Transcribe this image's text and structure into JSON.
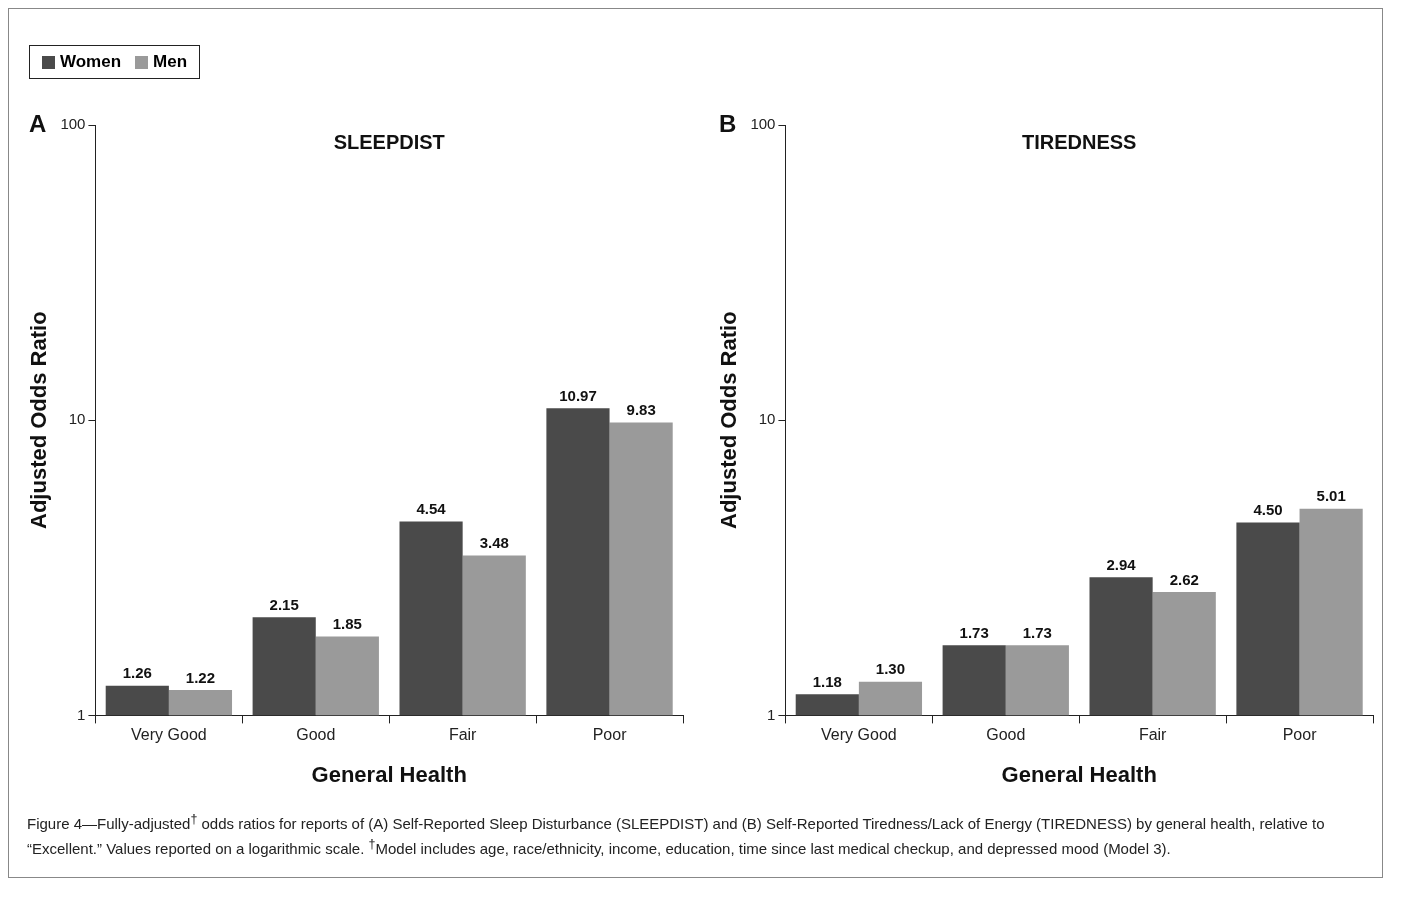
{
  "chart_data": [
    {
      "type": "bar",
      "title": "SLEEPDIST",
      "xlabel": "General Health",
      "ylabel": "Adjusted Odds Ratio",
      "categories": [
        "Very Good",
        "Good",
        "Fair",
        "Poor"
      ],
      "series": [
        {
          "name": "Women",
          "color": "#4a4a4a",
          "values": [
            1.26,
            2.15,
            4.54,
            10.97
          ]
        },
        {
          "name": "Men",
          "color": "#9a9a9a",
          "values": [
            1.22,
            1.85,
            3.48,
            9.83
          ]
        }
      ],
      "log": "y",
      "ylim": [
        1,
        100
      ],
      "yticks": [
        1,
        10,
        100
      ],
      "grid": false,
      "data_labels": true,
      "legend": "top left",
      "annotations": [
        "A",
        "Figure 4—Fully-adjusted$^{†}$ odds ratios for reports of (A) Self-Reported Sleep Disturbance (SLEEPDIST) and (B) Self-Reported Tiredness/Lack of Energy (TIREDNESS) by general health, relative to “Excellent.” Values reported on a logarithmic scale. $^{†}$Model includes age, race/ethnicity, income, education, time since last medical checkup, and depressed mood (Model 3)."
      ]
    },
    {
      "type": "bar",
      "title": "TIREDNESS",
      "xlabel": "General Health",
      "ylabel": "Adjusted Odds Ratio",
      "categories": [
        "Very Good",
        "Good",
        "Fair",
        "Poor"
      ],
      "series": [
        {
          "color": "#4a4a4a",
          "values": [
            1.18,
            1.73,
            2.94,
            4.5
          ],
          "value_labels": [
            "1.18",
            "1.73",
            "2.94",
            "4.50"
          ]
        },
        {
          "color": "#9a9a9a",
          "values": [
            1.3,
            1.73,
            2.62,
            5.01
          ],
          "value_labels": [
            "1.30",
            "1.73",
            "2.62",
            "5.01"
          ]
        }
      ],
      "log": "y",
      "ylim": [
        1,
        100
      ],
      "yticks": [
        1,
        10,
        100
      ],
      "grid": false,
      "annotations": [
        "B"
      ]
    }
  ]
}
